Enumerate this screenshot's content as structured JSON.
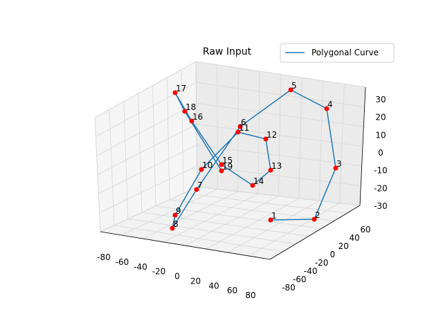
{
  "chart_data": {
    "type": "line3d",
    "title": "Raw Input",
    "legend": {
      "placement": "top-right",
      "entries": [
        "Polygonal Curve"
      ]
    },
    "series": [
      {
        "name": "Polygonal Curve",
        "color": "#1f77b4",
        "marker_color": "#ff0000",
        "point_labels": [
          "1",
          "2",
          "3",
          "4",
          "5",
          "6",
          "7",
          "8",
          "9",
          "10",
          "11",
          "12",
          "13",
          "14",
          "15",
          "16",
          "17",
          "18",
          "19"
        ]
      }
    ],
    "axes": {
      "x": {
        "range": [
          -80,
          80
        ],
        "ticks": [
          -80,
          -60,
          -40,
          -20,
          0,
          20,
          40,
          60,
          80
        ]
      },
      "y": {
        "range": [
          -80,
          60
        ],
        "ticks": [
          -80,
          -60,
          -40,
          -20,
          0,
          20,
          40,
          60
        ]
      },
      "z": {
        "range": [
          -30,
          30
        ],
        "ticks": [
          -30,
          -20,
          -10,
          0,
          10,
          20,
          30
        ]
      }
    },
    "grid": true
  }
}
